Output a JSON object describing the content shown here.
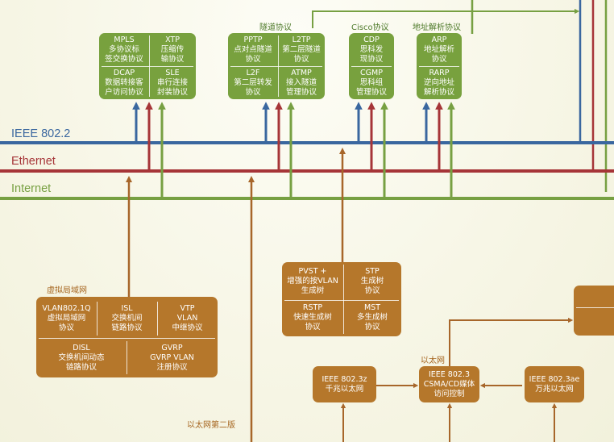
{
  "colors": {
    "ieee": "#3a679f",
    "ethernet": "#a63538",
    "internet": "#77a042",
    "brown": "#a7662a",
    "green_box": "#78a13e",
    "brown_box": "#b5772b"
  },
  "networks": {
    "ieee": "IEEE 802.2",
    "ethernet": "Ethernet",
    "internet": "Internet"
  },
  "group_labels": {
    "tunnel": "隧道协议",
    "cisco": "Cisco协议",
    "address": "地址解析协议",
    "vlan": "虚拟局域网",
    "ethernet": "以太网",
    "ethernet2": "以太网第二版"
  },
  "green_box1": {
    "mpls": "MPLS\n多协议标\n签交换协议",
    "xtp": "XTP\n压缩传\n输协议",
    "dcap": "DCAP\n数据转接客\n户访问协议",
    "sle": "SLE\n串行连接\n封装协议"
  },
  "green_box2": {
    "pptp": "PPTP\n点对点隧道\n协议",
    "l2tp": "L2TP\n第二层隧道\n协议",
    "l2f": "L2F\n第二层转发\n协议",
    "atmp": "ATMP\n接入隧道\n管理协议"
  },
  "green_box3": {
    "cdp": "CDP\n思科发\n现协议",
    "cgmp": "CGMP\n思科组\n管理协议"
  },
  "green_box4": {
    "arp": "ARP\n地址解析\n协议",
    "rarp": "RARP\n逆向地址\n解析协议"
  },
  "stp_box": {
    "pvst": "PVST +\n增强的按VLAN\n生成树",
    "stp": "STP\n生成树\n协议",
    "rstp": "RSTP\n快速生成树\n协议",
    "mst": "MST\n多生成树\n协议"
  },
  "vlan_box": {
    "vlan8021q": "VLAN802.1Q\n虚拟局域网\n协议",
    "isl": "ISL\n交换机间\n链路协议",
    "vtp": "VTP\nVLAN\n中继协议",
    "disl": "DISL\n交换机间动态\n链路协议",
    "gvrp": "GVRP\nGVRP VLAN\n注册协议"
  },
  "ieee8023z": "IEEE 802.3z\n千兆以太网",
  "ieee8023": "IEEE 802.3\nCSMA/CD媒体\n访问控制",
  "ieee8023ae": "IEEE 802.3ae\n万兆以太网"
}
